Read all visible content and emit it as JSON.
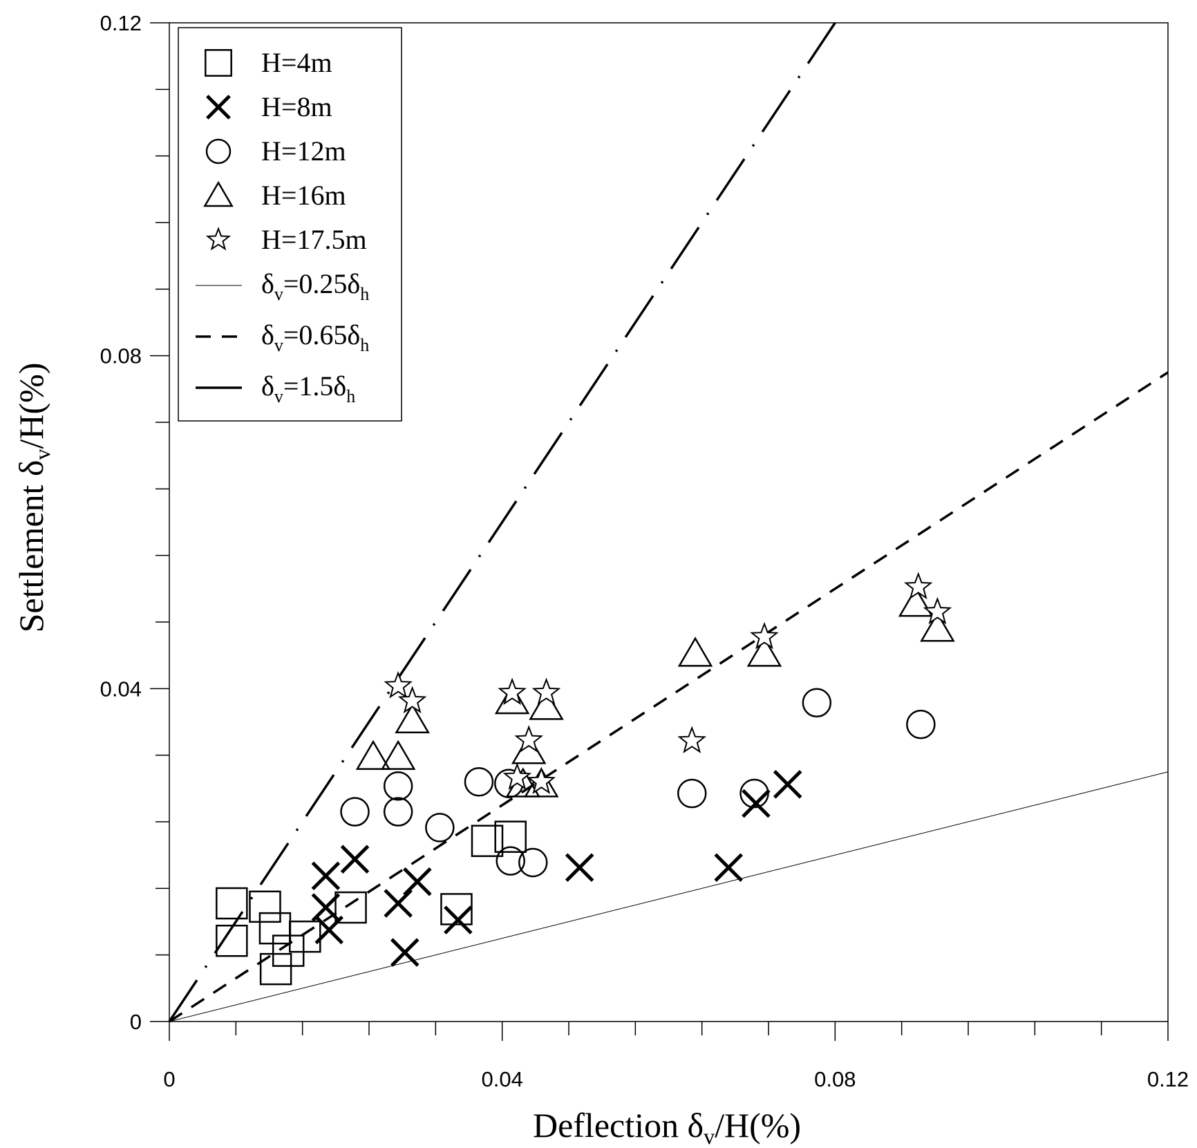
{
  "chart_data": {
    "type": "scatter",
    "xlabel": {
      "main": "Deflection δ",
      "sub": "v",
      "tail": "/H(%)"
    },
    "ylabel": {
      "main": "Settlement δ",
      "sub": "v",
      "tail": "/H(%)"
    },
    "xlim": [
      0,
      0.12
    ],
    "ylim": [
      0,
      0.12
    ],
    "xticks": [
      "0",
      "0.04",
      "0.08",
      "0.12"
    ],
    "yticks": [
      "0",
      "0.04",
      "0.08",
      "0.12"
    ],
    "legend_position": "top-left",
    "series": [
      {
        "name": "H=4m",
        "marker": "square",
        "points": [
          [
            0.0075,
            0.0142
          ],
          [
            0.0075,
            0.0097
          ],
          [
            0.0115,
            0.0138
          ],
          [
            0.0127,
            0.0112
          ],
          [
            0.0128,
            0.0063
          ],
          [
            0.0143,
            0.0085
          ],
          [
            0.0163,
            0.0102
          ],
          [
            0.0218,
            0.0137
          ],
          [
            0.0345,
            0.0135
          ],
          [
            0.0382,
            0.0217
          ],
          [
            0.041,
            0.0222
          ]
        ]
      },
      {
        "name": "H=8m",
        "marker": "x",
        "points": [
          [
            0.0188,
            0.0175
          ],
          [
            0.0188,
            0.0137
          ],
          [
            0.0192,
            0.011
          ],
          [
            0.0223,
            0.0195
          ],
          [
            0.0275,
            0.0142
          ],
          [
            0.0283,
            0.0083
          ],
          [
            0.0298,
            0.0168
          ],
          [
            0.0347,
            0.0122
          ],
          [
            0.0493,
            0.0185
          ],
          [
            0.0672,
            0.0185
          ],
          [
            0.0705,
            0.0262
          ],
          [
            0.0743,
            0.0285
          ]
        ]
      },
      {
        "name": "H=12m",
        "marker": "circle",
        "points": [
          [
            0.0223,
            0.0252
          ],
          [
            0.0275,
            0.0283
          ],
          [
            0.0275,
            0.0252
          ],
          [
            0.0325,
            0.0233
          ],
          [
            0.0372,
            0.0288
          ],
          [
            0.0408,
            0.0286
          ],
          [
            0.041,
            0.0193
          ],
          [
            0.0437,
            0.0191
          ],
          [
            0.0628,
            0.0274
          ],
          [
            0.0703,
            0.0274
          ],
          [
            0.0778,
            0.0383
          ],
          [
            0.0903,
            0.0357
          ]
        ]
      },
      {
        "name": "H=16m",
        "marker": "triangle",
        "points": [
          [
            0.0245,
            0.0318
          ],
          [
            0.0275,
            0.0318
          ],
          [
            0.0292,
            0.0362
          ],
          [
            0.0412,
            0.0385
          ],
          [
            0.0425,
            0.0285
          ],
          [
            0.0432,
            0.0325
          ],
          [
            0.0447,
            0.0285
          ],
          [
            0.0453,
            0.0378
          ],
          [
            0.0632,
            0.0442
          ],
          [
            0.0715,
            0.0442
          ],
          [
            0.0897,
            0.0502
          ],
          [
            0.0923,
            0.0472
          ]
        ]
      },
      {
        "name": "H=17.5m",
        "marker": "star",
        "points": [
          [
            0.0275,
            0.0403
          ],
          [
            0.0292,
            0.0385
          ],
          [
            0.0412,
            0.0395
          ],
          [
            0.0418,
            0.0293
          ],
          [
            0.0432,
            0.0338
          ],
          [
            0.0447,
            0.0288
          ],
          [
            0.0453,
            0.0395
          ],
          [
            0.0628,
            0.0337
          ],
          [
            0.0715,
            0.0462
          ],
          [
            0.09,
            0.0522
          ],
          [
            0.0923,
            0.0492
          ]
        ]
      }
    ],
    "lines": [
      {
        "name": "δv=0.25δh",
        "label": {
          "a": "δ",
          "b": "v",
          "c": "=0.25δ",
          "d": "h"
        },
        "slope": 0.25,
        "style": "thin"
      },
      {
        "name": "δv=0.65δh",
        "label": {
          "a": "δ",
          "b": "v",
          "c": "=0.65δ",
          "d": "h"
        },
        "slope": 0.65,
        "style": "dashed"
      },
      {
        "name": "δv=1.5δh",
        "label": {
          "a": "δ",
          "b": "v",
          "c": "=1.5δ",
          "d": "h"
        },
        "slope": 1.5,
        "style": "long-dash-dot"
      }
    ]
  }
}
